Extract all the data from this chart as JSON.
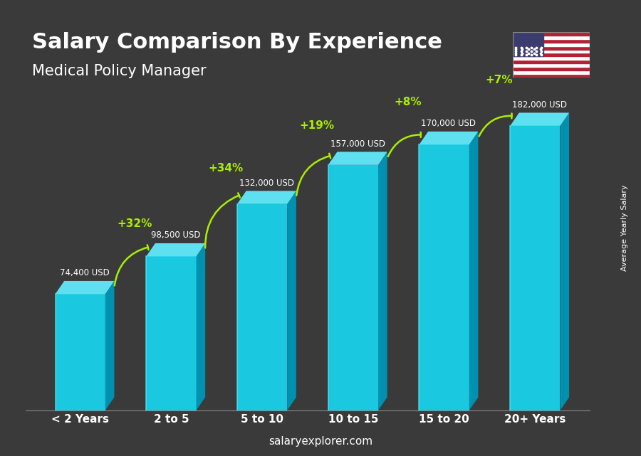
{
  "title": "Salary Comparison By Experience",
  "subtitle": "Medical Policy Manager",
  "categories": [
    "< 2 Years",
    "2 to 5",
    "5 to 10",
    "10 to 15",
    "15 to 20",
    "20+ Years"
  ],
  "values": [
    74400,
    98500,
    132000,
    157000,
    170000,
    182000
  ],
  "labels": [
    "74,400 USD",
    "98,500 USD",
    "132,000 USD",
    "157,000 USD",
    "170,000 USD",
    "182,000 USD"
  ],
  "pct_changes": [
    "+32%",
    "+34%",
    "+19%",
    "+8%",
    "+7%"
  ],
  "bar_color_top": "#00d4e8",
  "bar_color_mid": "#00b8d4",
  "bar_color_dark": "#0090b0",
  "bar_color_side": "#007a9a",
  "bg_color": "#3a3a3a",
  "text_color_white": "#ffffff",
  "text_color_green": "#aaee00",
  "ylabel": "Average Yearly Salary",
  "footer": "salaryexplorer.com",
  "ylim": [
    0,
    210000
  ],
  "bar_width": 0.55
}
